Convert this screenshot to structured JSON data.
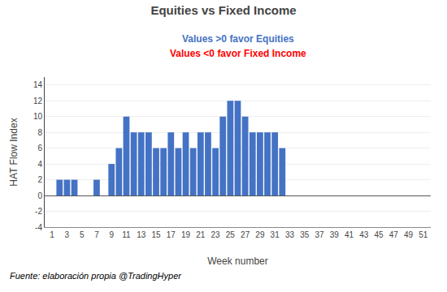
{
  "chart_data": {
    "type": "bar",
    "title": "Equities vs Fixed Income",
    "subtitles": [
      {
        "text": "Values >0 favor Equities",
        "color": "#4472C4"
      },
      {
        "text": "Values <0 favor Fixed Income",
        "color": "#FF0000"
      }
    ],
    "x_label": "Week number",
    "y_label": "HAT Flow Index",
    "footnote": "Fuente: elaboración propia @TradingHyper",
    "x": [
      1,
      2,
      3,
      4,
      5,
      6,
      7,
      8,
      9,
      10,
      11,
      12,
      13,
      14,
      15,
      16,
      17,
      18,
      19,
      20,
      21,
      22,
      23,
      24,
      25,
      26,
      27,
      28,
      29,
      30,
      31,
      32,
      33,
      34,
      35,
      36,
      37,
      38,
      39,
      40,
      41,
      42,
      43,
      44,
      45,
      46,
      47,
      48,
      49,
      50,
      51
    ],
    "values": [
      0,
      2,
      2,
      2,
      0,
      0,
      2,
      0,
      4,
      6,
      10,
      8,
      8,
      8,
      6,
      6,
      8,
      6,
      8,
      6,
      8,
      8,
      6,
      10,
      12,
      12,
      10,
      8,
      8,
      8,
      8,
      6,
      0,
      0,
      0,
      0,
      0,
      0,
      0,
      0,
      0,
      0,
      0,
      0,
      0,
      0,
      0,
      0,
      0,
      0,
      0
    ],
    "color": "#4472C4",
    "xlim": [
      0,
      52
    ],
    "xticks": [
      1,
      3,
      5,
      7,
      9,
      11,
      13,
      15,
      17,
      19,
      21,
      23,
      25,
      27,
      29,
      31,
      33,
      35,
      37,
      39,
      41,
      43,
      45,
      47,
      49,
      51
    ],
    "ylim": [
      -4,
      15
    ],
    "yticks": [
      -4,
      -2,
      0,
      2,
      4,
      6,
      8,
      10,
      12,
      14
    ],
    "grid": true
  }
}
